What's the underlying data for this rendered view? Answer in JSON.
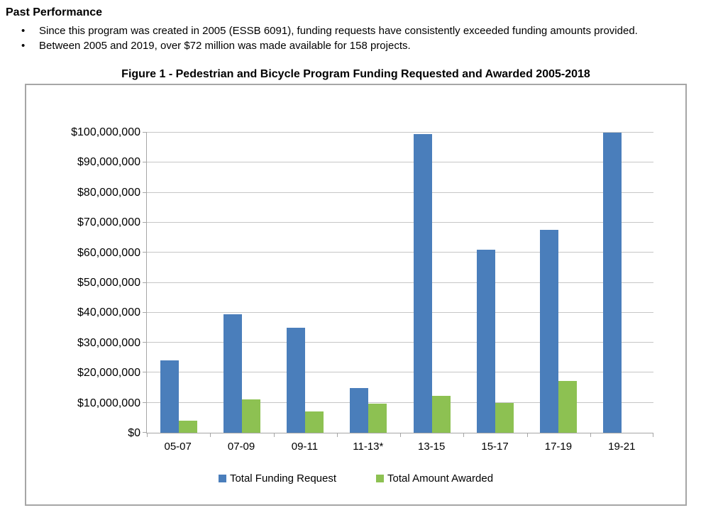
{
  "page": {
    "heading": "Past Performance",
    "bullets": [
      "Since this program was created in 2005 (ESSB 6091), funding requests have consistently exceeded funding amounts provided.",
      "Between 2005 and 2019, over $72 million was made available for 158 projects."
    ]
  },
  "figure": {
    "title": "Figure 1 - Pedestrian and Bicycle Program Funding Requested and Awarded 2005-2018"
  },
  "chart_data": {
    "type": "bar",
    "title": "Figure 1 - Pedestrian and Bicycle Program Funding Requested and Awarded 2005-2018",
    "categories": [
      "05-07",
      "07-09",
      "09-11",
      "11-13*",
      "13-15",
      "15-17",
      "17-19",
      "19-21"
    ],
    "series": [
      {
        "name": "Total Funding Request",
        "color": "#4A7EBB",
        "values": [
          24000000,
          39500000,
          35000000,
          15000000,
          99500000,
          61000000,
          67500000,
          100000000
        ]
      },
      {
        "name": "Total Amount Awarded",
        "color": "#8DC152",
        "values": [
          4000000,
          11000000,
          7000000,
          9700000,
          12300000,
          10000000,
          17300000,
          0
        ]
      }
    ],
    "xlabel": "",
    "ylabel": "",
    "ylim": [
      0,
      100000000
    ],
    "ytick_step": 10000000,
    "ytick_labels": [
      "$0",
      "$10,000,000",
      "$20,000,000",
      "$30,000,000",
      "$40,000,000",
      "$50,000,000",
      "$60,000,000",
      "$70,000,000",
      "$80,000,000",
      "$90,000,000",
      "$100,000,000"
    ],
    "grid": true,
    "legend_position": "bottom",
    "colors": {
      "gridline": "#c6c6c6",
      "axis": "#a6a6a6",
      "border": "#a6a6a6"
    }
  }
}
